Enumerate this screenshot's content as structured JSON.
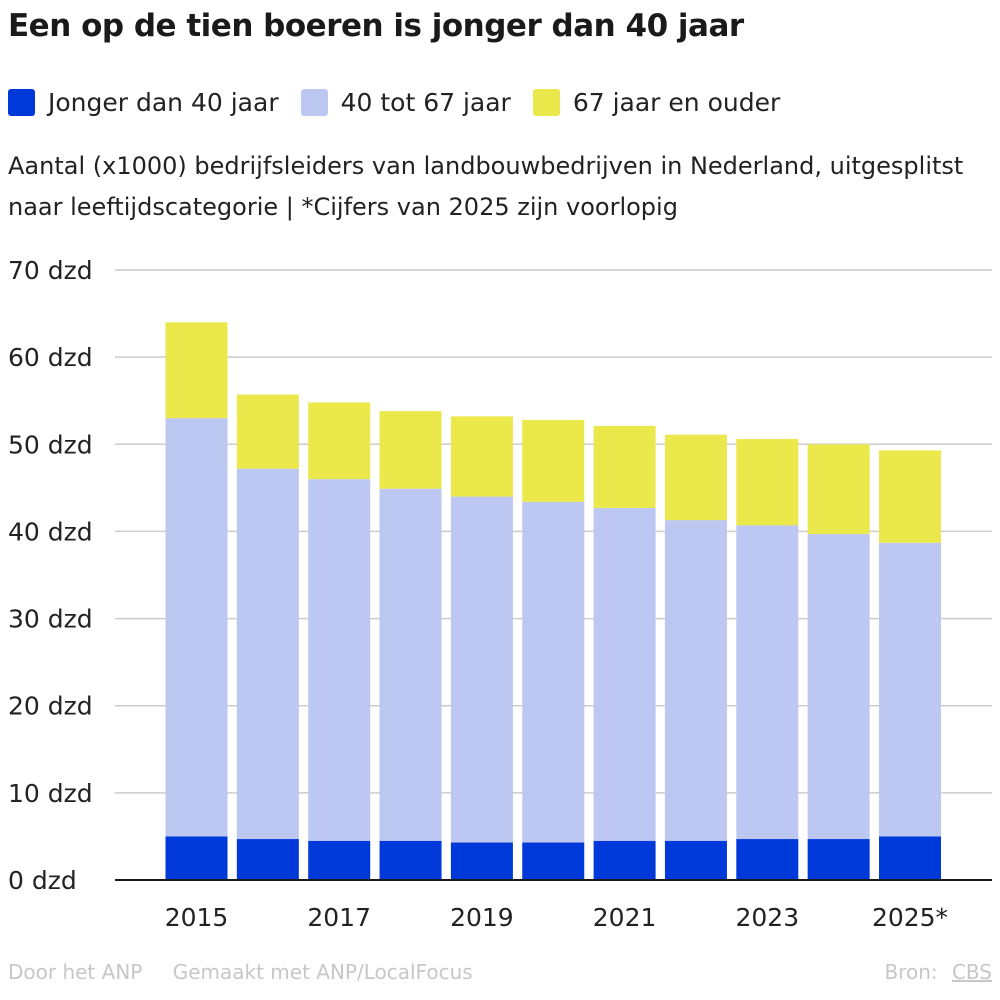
{
  "title": "Een op de tien boeren is jonger dan 40 jaar",
  "subtitle": "Aantal (x1000) bedrijfsleiders van landbouwbedrijven in Nederland, uitgesplitst naar leeftijdscategorie | *Cijfers van 2025 zijn voorlopig",
  "legend": [
    {
      "label": "Jonger dan 40 jaar",
      "color": "#0039d9"
    },
    {
      "label": "40 tot 67 jaar",
      "color": "#bcc8f1"
    },
    {
      "label": "67 jaar en ouder",
      "color": "#ebe84b"
    }
  ],
  "footer": {
    "credit": "Door het ANP",
    "made_with": "Gemaakt met ANP/LocalFocus",
    "source_label": "Bron:",
    "source_link": "CBS"
  },
  "chart_data": {
    "type": "bar",
    "stacked": true,
    "categories": [
      "2015",
      "2016",
      "2017",
      "2018",
      "2019",
      "2020",
      "2021",
      "2022",
      "2023",
      "2024",
      "2025*"
    ],
    "x_tick_labels": [
      "2015",
      "",
      "2017",
      "",
      "2019",
      "",
      "2021",
      "",
      "2023",
      "",
      "2025*"
    ],
    "series": [
      {
        "name": "Jonger dan 40 jaar",
        "color": "#0039d9",
        "values": [
          5.0,
          4.7,
          4.5,
          4.5,
          4.3,
          4.3,
          4.5,
          4.5,
          4.7,
          4.7,
          5.0
        ]
      },
      {
        "name": "40 tot 67 jaar",
        "color": "#bcc8f1",
        "values": [
          48.0,
          42.5,
          41.5,
          40.4,
          39.7,
          39.1,
          38.2,
          36.8,
          36.0,
          35.0,
          33.7
        ]
      },
      {
        "name": "67 jaar en ouder",
        "color": "#ebe84b",
        "values": [
          11.0,
          8.5,
          8.8,
          8.9,
          9.2,
          9.4,
          9.4,
          9.8,
          9.9,
          10.3,
          10.6
        ]
      }
    ],
    "y_ticks": [
      0,
      10,
      20,
      30,
      40,
      50,
      60,
      70
    ],
    "y_tick_labels": [
      "0 dzd",
      "10 dzd",
      "20 dzd",
      "30 dzd",
      "40 dzd",
      "50 dzd",
      "60 dzd",
      "70 dzd"
    ],
    "ylim": [
      0,
      70
    ],
    "grid": true,
    "legend_position": "top-left"
  }
}
